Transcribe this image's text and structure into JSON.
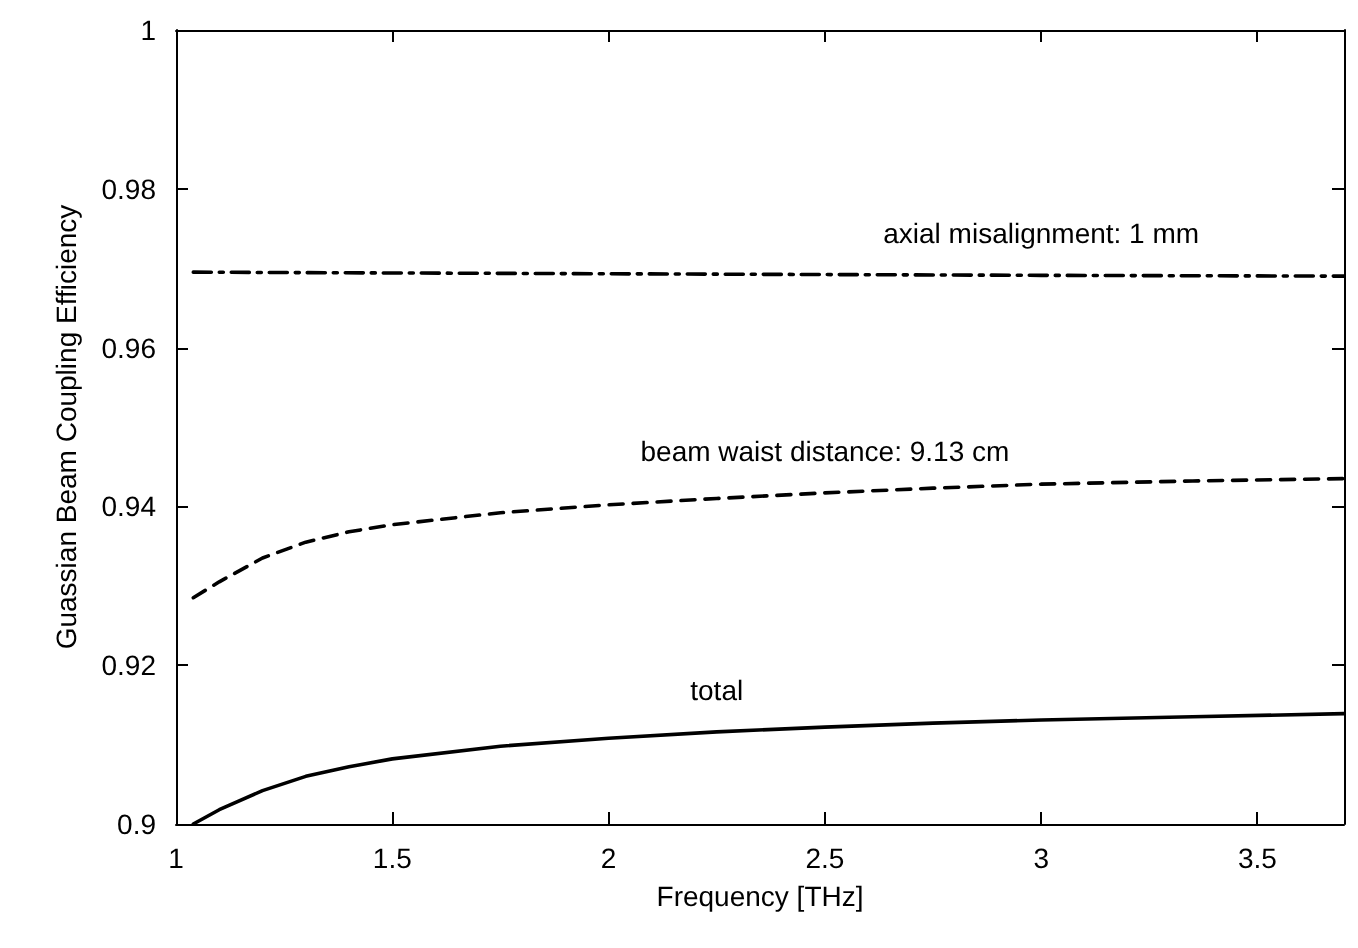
{
  "chart_data": {
    "type": "line",
    "xlabel": "Frequency [THz]",
    "ylabel": "Guassian Beam Coupling Efficiency",
    "xlim": [
      1,
      3.7
    ],
    "xticks": [
      1,
      1.5,
      2,
      2.5,
      3,
      3.5
    ],
    "ylim": [
      0.9,
      1
    ],
    "yticks": [
      0.9,
      0.92,
      0.94,
      0.96,
      0.98,
      1
    ],
    "grid": false,
    "legend": false,
    "marker": "none",
    "series": [
      {
        "name": "axial misalignment: 1 mm",
        "color": "#000000",
        "line_style": "dashdot",
        "x": [
          1.04,
          1.5,
          2,
          2.5,
          3,
          3.7
        ],
        "values": [
          0.9695,
          0.9694,
          0.9693,
          0.9692,
          0.9691,
          0.969
        ]
      },
      {
        "name": "beam waist distance: 9.13 cm",
        "color": "#000000",
        "line_style": "dashed",
        "x": [
          1.04,
          1.1,
          1.2,
          1.3,
          1.4,
          1.5,
          1.75,
          2,
          2.25,
          2.5,
          2.75,
          3,
          3.35,
          3.7
        ],
        "values": [
          0.9285,
          0.9305,
          0.9335,
          0.9355,
          0.9368,
          0.9377,
          0.9392,
          0.9402,
          0.941,
          0.9417,
          0.9423,
          0.9428,
          0.9432,
          0.9435
        ]
      },
      {
        "name": "total",
        "color": "#000000",
        "line_style": "solid",
        "x": [
          1.04,
          1.1,
          1.2,
          1.3,
          1.4,
          1.5,
          1.75,
          2,
          2.25,
          2.5,
          2.75,
          3,
          3.35,
          3.7
        ],
        "values": [
          0.9,
          0.9018,
          0.9042,
          0.906,
          0.9072,
          0.9082,
          0.9098,
          0.9108,
          0.9116,
          0.9122,
          0.9127,
          0.9131,
          0.9135,
          0.9139
        ]
      }
    ]
  }
}
